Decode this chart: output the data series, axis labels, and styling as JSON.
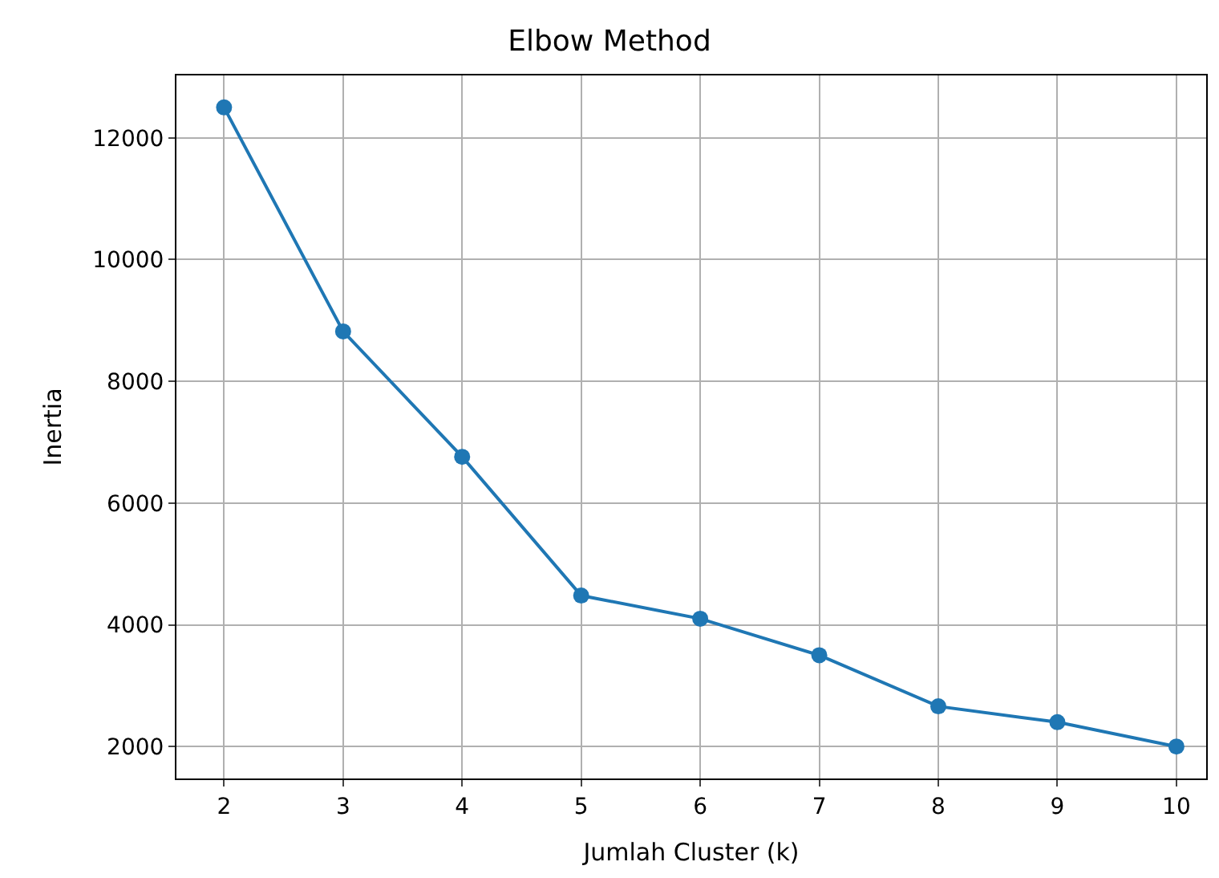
{
  "chart_data": {
    "type": "line",
    "title": "Elbow Method",
    "xlabel": "Jumlah Cluster (k)",
    "ylabel": "Inertia",
    "x": [
      2,
      3,
      4,
      5,
      6,
      7,
      8,
      9,
      10
    ],
    "series": [
      {
        "color": "#1f77b4",
        "values": [
          12500,
          8820,
          6760,
          4480,
          4100,
          3500,
          2660,
          2400,
          2000
        ]
      }
    ],
    "xlim": [
      1.6,
      10.25
    ],
    "xticks": [
      2,
      3,
      4,
      5,
      6,
      7,
      8,
      9,
      10
    ],
    "ylim": [
      1475,
      13025
    ],
    "yticks": [
      2000,
      4000,
      6000,
      8000,
      10000,
      12000
    ],
    "grid": true,
    "marker": "circle",
    "line_style": "solid"
  }
}
